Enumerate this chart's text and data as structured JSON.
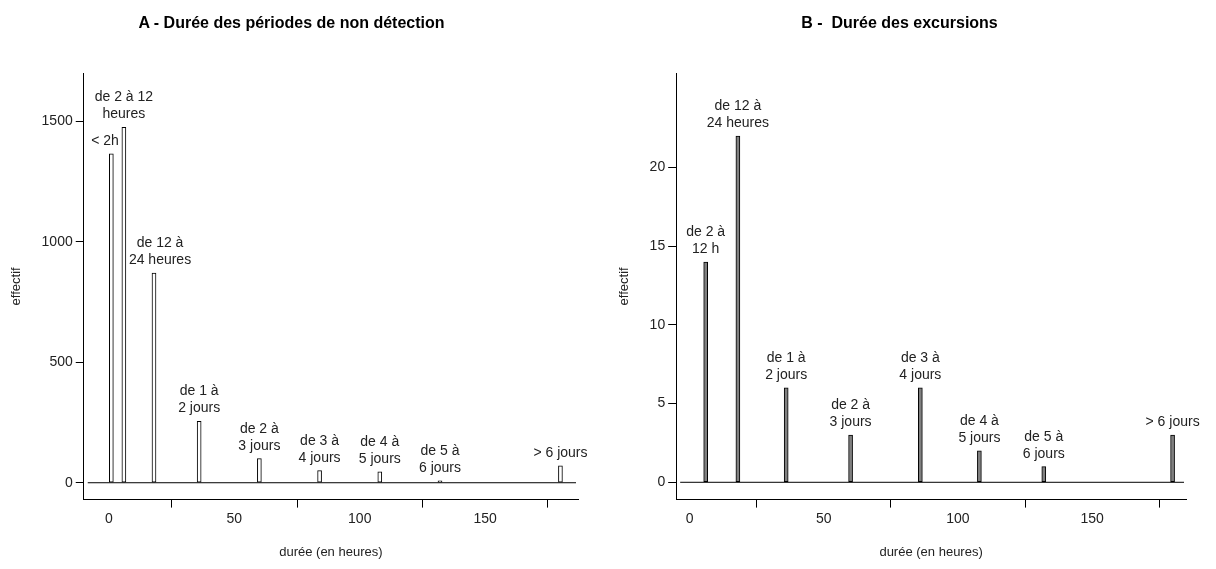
{
  "chart_data": [
    {
      "type": "bar",
      "title": "A - Durée des périodes de non détection",
      "xlabel": "durée (en heures)",
      "ylabel": "effectif",
      "x": [
        1,
        6,
        18,
        36,
        60,
        84,
        108,
        132,
        180
      ],
      "values": [
        1365,
        1475,
        870,
        255,
        100,
        50,
        45,
        8,
        70
      ],
      "color": "#ffffff",
      "xlim": [
        -10,
        187
      ],
      "xticks": [
        0,
        50,
        100,
        150
      ],
      "ylim": [
        -70,
        1700
      ],
      "yticks": [
        0,
        500,
        1000,
        1500
      ],
      "grid": false,
      "legend": false,
      "ref_lines": [
        {
          "axis": "y",
          "value": 0,
          "color": "#000000"
        }
      ],
      "annotations": [
        {
          "text": "< 2h",
          "x": 1,
          "y": 1365
        },
        {
          "text": "de 2 à 12\nheures",
          "x": 6,
          "y": 1475
        },
        {
          "text": "de 12 à\n24 heures",
          "x": 18,
          "y": 870
        },
        {
          "text": "de 1 à\n2 jours",
          "x": 36,
          "y": 255
        },
        {
          "text": "de 2 à\n3 jours",
          "x": 60,
          "y": 100
        },
        {
          "text": "de 3 à\n4 jours",
          "x": 84,
          "y": 50
        },
        {
          "text": "de 4 à\n5 jours",
          "x": 108,
          "y": 45
        },
        {
          "text": "de 5 à\n6 jours",
          "x": 132,
          "y": 8
        },
        {
          "text": "> 6 jours",
          "x": 180,
          "y": 70
        }
      ]
    },
    {
      "type": "bar",
      "title": "B -  Durée des excursions",
      "xlabel": "durée (en heures)",
      "ylabel": "effectif",
      "x": [
        6,
        18,
        36,
        60,
        86,
        108,
        132,
        180
      ],
      "values": [
        14,
        22,
        6,
        3,
        6,
        2,
        1,
        3
      ],
      "color": "#808080",
      "xlim": [
        -5,
        185
      ],
      "xticks": [
        0,
        50,
        100,
        150
      ],
      "ylim": [
        -1.1,
        26
      ],
      "yticks": [
        0,
        5,
        10,
        15,
        20
      ],
      "grid": false,
      "legend": false,
      "ref_lines": [
        {
          "axis": "y",
          "value": 0,
          "color": "#000000"
        }
      ],
      "annotations": [
        {
          "text": "de 2 à\n12 h",
          "x": 6,
          "y": 14
        },
        {
          "text": "de 12 à\n24 heures",
          "x": 18,
          "y": 22
        },
        {
          "text": "de 1 à\n2 jours",
          "x": 36,
          "y": 6
        },
        {
          "text": "de 2 à\n3 jours",
          "x": 60,
          "y": 3
        },
        {
          "text": "de 3 à\n4 jours",
          "x": 86,
          "y": 6
        },
        {
          "text": "de 4 à\n5 jours",
          "x": 108,
          "y": 2
        },
        {
          "text": "de 5 à\n6 jours",
          "x": 132,
          "y": 1
        },
        {
          "text": "> 6 jours",
          "x": 180,
          "y": 3
        }
      ]
    }
  ]
}
